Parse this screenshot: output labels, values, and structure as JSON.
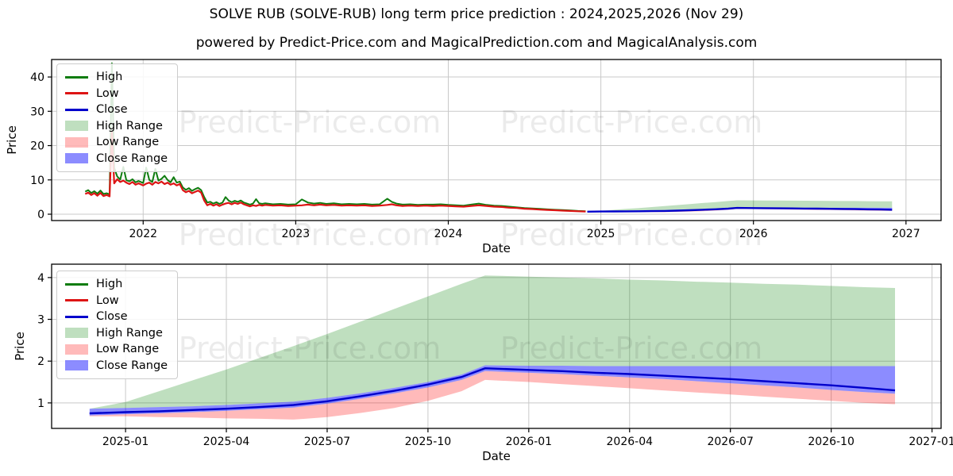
{
  "title": "SOLVE RUB (SOLVE-RUB) long term price prediction : 2024,2025,2026 (Nov 29)",
  "subtitle": "powered by Predict-Price.com and MagicalPrediction.com and MagicalAnalysis.com",
  "watermark": "Predict-Price.com",
  "colors": {
    "high_line": "#0f7c0f",
    "low_line": "#dd1414",
    "close_line": "#0000cc",
    "high_range": "rgba(0,128,0,0.25)",
    "low_range": "rgba(255,0,0,0.27)",
    "close_range": "rgba(0,0,255,0.45)",
    "grid": "#c9c9c9",
    "spine": "#000000",
    "watermark_opacity": "0.075"
  },
  "legend_items": [
    {
      "label": "High",
      "swatch": "line",
      "color_key": "high_line"
    },
    {
      "label": "Low",
      "swatch": "line",
      "color_key": "low_line"
    },
    {
      "label": "Close",
      "swatch": "line",
      "color_key": "close_line"
    },
    {
      "label": "High Range",
      "swatch": "patch",
      "color_key": "high_range"
    },
    {
      "label": "Low Range",
      "swatch": "patch",
      "color_key": "low_range"
    },
    {
      "label": "Close Range",
      "swatch": "patch",
      "color_key": "close_range"
    }
  ],
  "chart_data": [
    {
      "type": "line",
      "name": "long-term-history-and-prediction",
      "xlabel": "Date",
      "ylabel": "Price",
      "xticks": {
        "values": [
          2022,
          2023,
          2024,
          2025,
          2026,
          2027
        ],
        "labels": [
          "2022",
          "2023",
          "2024",
          "2025",
          "2026",
          "2027"
        ]
      },
      "yticks": [
        0,
        10,
        20,
        30,
        40
      ],
      "xlim": [
        2021.4,
        2027.23
      ],
      "ylim": [
        -1.85,
        45.1
      ],
      "grid": true,
      "legend_position": "upper-left",
      "series": {
        "history_x": [
          2021.62,
          2021.64,
          2021.66,
          2021.68,
          2021.7,
          2021.72,
          2021.74,
          2021.76,
          2021.78,
          2021.795,
          2021.81,
          2021.83,
          2021.85,
          2021.87,
          2021.89,
          2021.91,
          2021.93,
          2021.95,
          2021.97,
          2022.0,
          2022.02,
          2022.04,
          2022.06,
          2022.08,
          2022.1,
          2022.12,
          2022.14,
          2022.16,
          2022.18,
          2022.2,
          2022.22,
          2022.24,
          2022.26,
          2022.28,
          2022.3,
          2022.32,
          2022.34,
          2022.36,
          2022.38,
          2022.4,
          2022.42,
          2022.44,
          2022.46,
          2022.48,
          2022.5,
          2022.52,
          2022.54,
          2022.56,
          2022.58,
          2022.6,
          2022.62,
          2022.64,
          2022.66,
          2022.68,
          2022.7,
          2022.72,
          2022.74,
          2022.76,
          2022.78,
          2022.8,
          2022.85,
          2022.9,
          2022.95,
          2023.0,
          2023.04,
          2023.08,
          2023.12,
          2023.16,
          2023.2,
          2023.25,
          2023.3,
          2023.35,
          2023.4,
          2023.45,
          2023.5,
          2023.55,
          2023.6,
          2023.63,
          2023.66,
          2023.7,
          2023.75,
          2023.8,
          2023.85,
          2023.9,
          2023.95,
          2024.0,
          2024.05,
          2024.1,
          2024.15,
          2024.2,
          2024.25,
          2024.3,
          2024.35,
          2024.4,
          2024.45,
          2024.5,
          2024.55,
          2024.6,
          2024.65,
          2024.7,
          2024.75,
          2024.8,
          2024.85,
          2024.9
        ],
        "history_low": [
          5.9,
          6.3,
          5.6,
          6.1,
          5.4,
          6.2,
          5.3,
          5.6,
          5.2,
          24.0,
          9.0,
          10.2,
          9.4,
          9.8,
          9.2,
          8.8,
          9.4,
          8.6,
          9.0,
          8.4,
          8.9,
          9.2,
          8.6,
          9.4,
          9.0,
          9.5,
          8.8,
          9.2,
          8.6,
          9.0,
          8.4,
          8.8,
          7.0,
          6.4,
          6.8,
          6.1,
          6.5,
          6.9,
          6.3,
          4.0,
          2.6,
          3.0,
          2.5,
          2.9,
          2.4,
          2.8,
          3.1,
          3.3,
          2.9,
          3.3,
          3.0,
          3.4,
          2.9,
          2.6,
          2.3,
          2.6,
          2.4,
          2.7,
          2.5,
          2.7,
          2.5,
          2.6,
          2.4,
          2.5,
          2.6,
          2.8,
          2.6,
          2.8,
          2.6,
          2.7,
          2.5,
          2.6,
          2.5,
          2.6,
          2.4,
          2.5,
          2.7,
          2.9,
          2.6,
          2.4,
          2.5,
          2.4,
          2.5,
          2.4,
          2.5,
          2.4,
          2.3,
          2.2,
          2.4,
          2.6,
          2.4,
          2.2,
          2.1,
          1.9,
          1.8,
          1.6,
          1.5,
          1.35,
          1.25,
          1.15,
          1.05,
          0.95,
          0.85,
          0.78
        ],
        "history_high": [
          6.6,
          7.0,
          6.2,
          6.7,
          6.0,
          6.9,
          5.9,
          6.1,
          5.8,
          44.0,
          13.5,
          11.0,
          10.1,
          13.8,
          9.9,
          9.6,
          10.2,
          9.3,
          9.7,
          9.1,
          13.6,
          10.0,
          9.4,
          13.2,
          9.8,
          10.3,
          11.2,
          10.0,
          9.3,
          10.8,
          9.2,
          9.5,
          7.8,
          7.1,
          7.6,
          6.8,
          7.3,
          7.7,
          7.0,
          5.0,
          3.4,
          3.6,
          3.1,
          3.5,
          3.0,
          3.4,
          5.0,
          4.0,
          3.5,
          3.9,
          3.6,
          4.0,
          3.4,
          3.1,
          2.8,
          3.1,
          4.4,
          3.2,
          3.0,
          3.2,
          2.9,
          3.0,
          2.8,
          2.9,
          4.3,
          3.4,
          3.1,
          3.3,
          3.0,
          3.2,
          2.9,
          3.0,
          2.9,
          3.0,
          2.8,
          2.9,
          4.5,
          3.6,
          3.1,
          2.8,
          2.9,
          2.7,
          2.8,
          2.8,
          2.9,
          2.7,
          2.6,
          2.5,
          2.8,
          3.1,
          2.7,
          2.5,
          2.4,
          2.2,
          2.0,
          1.8,
          1.7,
          1.55,
          1.4,
          1.3,
          1.2,
          1.1,
          0.95,
          0.88
        ]
      },
      "note": "prediction bands/close are the same series shown in the second chart"
    },
    {
      "type": "line",
      "name": "prediction-detail-2025-2027",
      "xlabel": "Date",
      "ylabel": "Price",
      "x_unit": "months since 2024-12-01",
      "xticks": {
        "values": [
          1,
          4,
          7,
          10,
          13,
          16,
          19,
          22,
          25
        ],
        "labels": [
          "2025-01",
          "2025-04",
          "2025-07",
          "2025-10",
          "2026-01",
          "2026-04",
          "2026-07",
          "2026-10",
          "2027-01"
        ]
      },
      "yticks": [
        1,
        2,
        3,
        4
      ],
      "xlim": [
        -1.2,
        25.27
      ],
      "ylim": [
        0.39,
        4.32
      ],
      "grid": true,
      "legend_position": "upper-left",
      "series": {
        "t": [
          -0.07,
          1,
          2,
          3,
          4,
          5,
          6,
          7,
          8,
          9,
          10,
          11,
          11.7,
          13,
          14,
          15,
          16,
          17,
          18,
          19,
          20,
          21,
          22,
          23,
          23.9
        ],
        "close": [
          0.75,
          0.78,
          0.8,
          0.83,
          0.86,
          0.9,
          0.95,
          1.04,
          1.16,
          1.29,
          1.44,
          1.62,
          1.83,
          1.79,
          1.76,
          1.72,
          1.69,
          1.65,
          1.61,
          1.57,
          1.52,
          1.47,
          1.42,
          1.36,
          1.3
        ],
        "high_range_top": [
          0.86,
          1.02,
          1.28,
          1.54,
          1.8,
          2.08,
          2.36,
          2.65,
          2.95,
          3.25,
          3.55,
          3.85,
          4.05,
          4.02,
          4.0,
          3.98,
          3.95,
          3.93,
          3.9,
          3.88,
          3.85,
          3.83,
          3.8,
          3.77,
          3.75
        ],
        "low_range_bottom": [
          0.68,
          0.68,
          0.66,
          0.65,
          0.63,
          0.62,
          0.6,
          0.66,
          0.76,
          0.88,
          1.05,
          1.28,
          1.55,
          1.5,
          1.45,
          1.4,
          1.35,
          1.3,
          1.25,
          1.2,
          1.15,
          1.1,
          1.05,
          1.0,
          0.97
        ],
        "close_range_top": [
          0.86,
          0.88,
          0.9,
          0.92,
          0.95,
          0.99,
          1.03,
          1.12,
          1.23,
          1.36,
          1.5,
          1.68,
          1.9,
          1.89,
          1.89,
          1.88,
          1.88,
          1.88,
          1.88,
          1.88,
          1.88,
          1.88,
          1.88,
          1.88,
          1.88
        ],
        "close_range_bottom": [
          0.7,
          0.73,
          0.75,
          0.78,
          0.81,
          0.85,
          0.89,
          0.98,
          1.1,
          1.23,
          1.37,
          1.55,
          1.76,
          1.72,
          1.69,
          1.65,
          1.61,
          1.57,
          1.52,
          1.47,
          1.42,
          1.37,
          1.31,
          1.26,
          1.22
        ]
      }
    }
  ]
}
